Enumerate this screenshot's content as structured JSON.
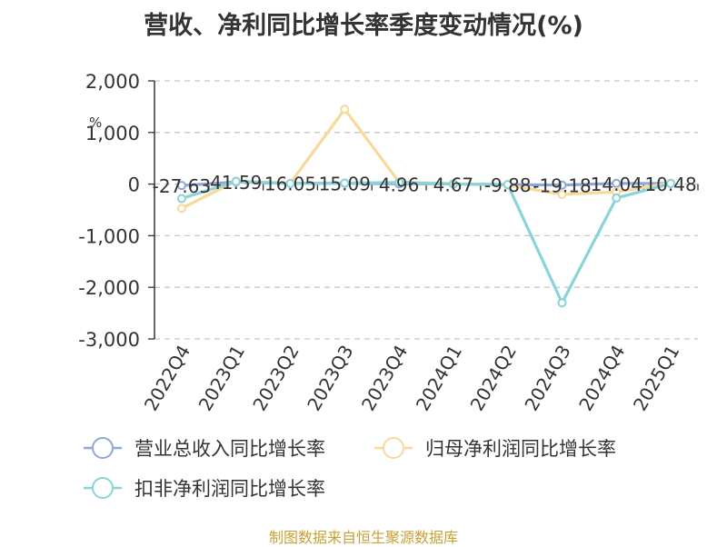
{
  "chart_data": {
    "type": "line",
    "title": "营收、净利同比增长率季度变动情况(%)",
    "ylabel": "%",
    "xlabel": "",
    "categories": [
      "2022Q4",
      "2023Q1",
      "2023Q2",
      "2023Q3",
      "2023Q4",
      "2024Q1",
      "2024Q2",
      "2024Q3",
      "2024Q4",
      "2025Q1"
    ],
    "ylim": [
      -3000,
      2000
    ],
    "yticks": [
      2000,
      1000,
      0,
      -1000,
      -2000,
      -3000
    ],
    "ytick_labels": [
      "2,000",
      "1,000",
      "0",
      "-1,000",
      "-2,000",
      "-3,000"
    ],
    "grid": true,
    "legend_position": "bottom",
    "series": [
      {
        "name": "营业总收入同比增长率",
        "color": "#8fa8d8",
        "values": [
          -27.63,
          41.59,
          16.05,
          15.09,
          4.96,
          4.67,
          -9.88,
          -19.18,
          14.04,
          10.48
        ],
        "data_labels": [
          "-27.63",
          "41.59",
          "16.05",
          "15.09",
          "4.96",
          "4.67",
          "-9.88",
          "-19.18",
          "14.04",
          "10.48"
        ]
      },
      {
        "name": "归母净利润同比增长率",
        "color": "#f9d99a",
        "values": [
          -470,
          60,
          20,
          1450,
          40,
          10,
          -20,
          -200,
          -150,
          20
        ]
      },
      {
        "name": "扣非净利润同比增长率",
        "color": "#88d4d8",
        "values": [
          -280,
          50,
          10,
          20,
          30,
          0,
          -10,
          -2300,
          -270,
          10
        ]
      }
    ]
  },
  "source": "制图数据来自恒生聚源数据库"
}
